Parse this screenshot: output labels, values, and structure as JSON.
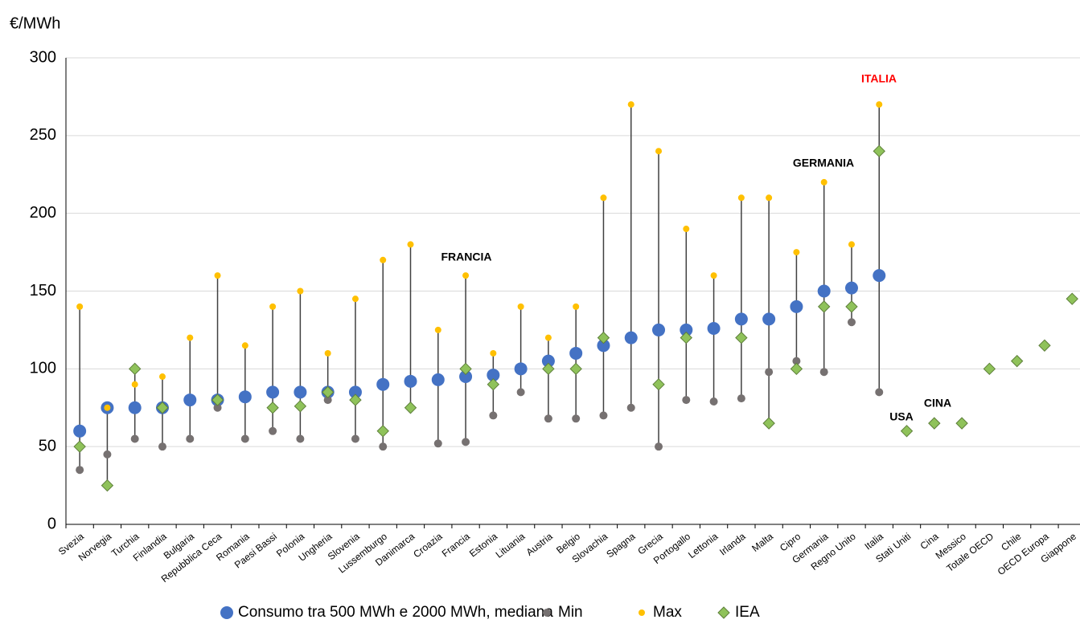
{
  "chart_data": {
    "type": "dot-range",
    "y_label": "€/MWh",
    "categories": [
      "Svezia",
      "Norvegia",
      "Turchia",
      "Finlandia",
      "Bulgaria",
      "Repubblica Ceca",
      "Romania",
      "Paesi Bassi",
      "Polonia",
      "Ungheria",
      "Slovenia",
      "Lussemburgo",
      "Danimarca",
      "Croazia",
      "Francia",
      "Estonia",
      "Lituania",
      "Austria",
      "Belgio",
      "Slovachia",
      "Spagna",
      "Grecia",
      "Portogallo",
      "Lettonia",
      "Irlanda",
      "Malta",
      "Cipro",
      "Germania",
      "Regno Unito",
      "Italia",
      "Stati Uniti",
      "Cina",
      "Messico",
      "Totale OECD",
      "Chile",
      "OECD Europa",
      "Giappone"
    ],
    "series": [
      {
        "name": "Consumo tra 500 MWh e 2000 MWh, mediana",
        "color": "#4472c4",
        "marker": "circle",
        "values": [
          60,
          75,
          75,
          75,
          80,
          80,
          82,
          85,
          85,
          85,
          85,
          90,
          92,
          93,
          95,
          96,
          100,
          105,
          110,
          115,
          120,
          125,
          125,
          126,
          132,
          132,
          140,
          150,
          152,
          160,
          null,
          null,
          null,
          null,
          null,
          null,
          null
        ]
      },
      {
        "name": "Min",
        "color": "#767171",
        "marker": "dot",
        "values": [
          35,
          45,
          55,
          50,
          55,
          75,
          55,
          60,
          55,
          80,
          55,
          50,
          75,
          52,
          53,
          70,
          85,
          68,
          68,
          70,
          75,
          50,
          80,
          79,
          81,
          98,
          105,
          98,
          130,
          85,
          null,
          null,
          null,
          null,
          null,
          null,
          null
        ]
      },
      {
        "name": "Max",
        "color": "#ffc000",
        "marker": "small-dot",
        "values": [
          140,
          75,
          90,
          95,
          120,
          160,
          115,
          140,
          150,
          110,
          145,
          170,
          180,
          125,
          160,
          110,
          140,
          120,
          140,
          210,
          270,
          240,
          190,
          160,
          210,
          210,
          175,
          220,
          180,
          270,
          null,
          null,
          null,
          null,
          null,
          null,
          null
        ]
      },
      {
        "name": "IEA",
        "color": "#8fc25a",
        "marker": "diamond",
        "values": [
          50,
          25,
          100,
          75,
          null,
          80,
          null,
          75,
          76,
          85,
          80,
          60,
          75,
          null,
          100,
          90,
          null,
          100,
          100,
          120,
          null,
          90,
          120,
          null,
          120,
          65,
          100,
          140,
          140,
          240,
          60,
          65,
          65,
          100,
          105,
          115,
          145
        ]
      }
    ],
    "annotations": [
      {
        "text": "FRANCIA",
        "color": "#000000"
      },
      {
        "text": "GERMANIA",
        "color": "#000000"
      },
      {
        "text": "ITALIA",
        "color": "#ff0000"
      },
      {
        "text": "USA",
        "color": "#000000"
      },
      {
        "text": "CINA",
        "color": "#000000"
      }
    ],
    "ylim": [
      0,
      300
    ],
    "yticks": [
      0,
      50,
      100,
      150,
      200,
      250,
      300
    ],
    "grid": true,
    "legend": "bottom"
  }
}
